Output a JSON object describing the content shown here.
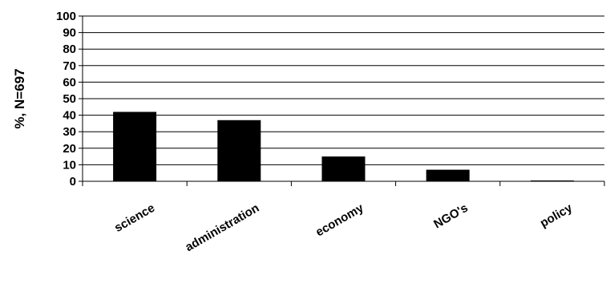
{
  "chart_data": {
    "type": "bar",
    "title": "",
    "xlabel": "",
    "ylabel": "%, N=697",
    "categories": [
      "science",
      "administration",
      "economy",
      "NGO's",
      "policy"
    ],
    "series": [
      {
        "values": [
          42,
          37,
          15,
          7,
          0.5
        ],
        "color": "#000000"
      }
    ],
    "ylim": [
      0,
      100
    ],
    "yticks": [
      "0",
      "10",
      "20",
      "30",
      "40",
      "50",
      "60",
      "70",
      "80",
      "90",
      "100"
    ],
    "grid": true,
    "legend": "none"
  }
}
